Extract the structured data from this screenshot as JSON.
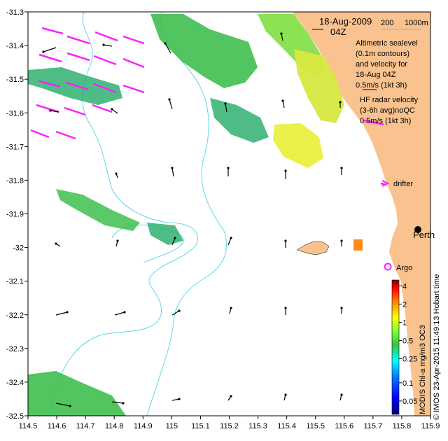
{
  "map": {
    "date_label": "18-Aug-2009",
    "time_label": "04Z",
    "x_ticks": [
      "114.5",
      "114.6",
      "114.7",
      "114.8",
      "114.9",
      "115",
      "115.1",
      "115.2",
      "115.3",
      "115.4",
      "115.5",
      "115.6",
      "115.7",
      "115.8",
      "115.9"
    ],
    "y_ticks": [
      "-31.3",
      "-31.4",
      "-31.5",
      "-31.6",
      "-31.7",
      "-31.8",
      "-31.9",
      "-32",
      "-32.1",
      "-32.2",
      "-32.3",
      "-32.4",
      "-32.5"
    ],
    "x_range": [
      114.5,
      115.9
    ],
    "y_range": [
      -32.5,
      -31.3
    ],
    "isobath_labels": {
      "shallow": "200",
      "deep": "1000m"
    },
    "altimetry_legend": [
      "Altimetric sealevel",
      "(0.1m contours)",
      "and velocity for",
      "18-Aug 04Z",
      "0.5m/s (1kt 3h)"
    ],
    "hf_radar_legend": [
      "HF radar velocity",
      "(3-6h avg)noQC",
      "0.5m/s (1kt 3h)"
    ],
    "drifter_label": "drifter",
    "argo_label": "Argo",
    "city_label": "Perth",
    "colorbar": {
      "title": "MODIS Chl-a mg/m3 OC3",
      "ticks": [
        "4",
        "2",
        "1",
        "0.5",
        "0.25",
        "0.1",
        "0.05"
      ],
      "tick_values": [
        4,
        2,
        1,
        0.5,
        0.25,
        0.1,
        0.05
      ],
      "range": [
        0.03,
        5
      ],
      "scale": "log"
    },
    "credit": "© IMOS 23-Apr-2015 11:49:13 Hobart time",
    "colors": {
      "land": "#f9c28f",
      "isobath": "#5fd7e6",
      "hf_radar": "#ff1fff",
      "argo": "#ff1fff",
      "vectors": "#000000"
    },
    "features": {
      "perth": {
        "lon": 115.86,
        "lat": -31.95
      },
      "argo": {
        "lon": 115.75,
        "lat": -32.07
      },
      "drifter": {
        "lon": 115.74,
        "lat": -31.81
      }
    }
  }
}
